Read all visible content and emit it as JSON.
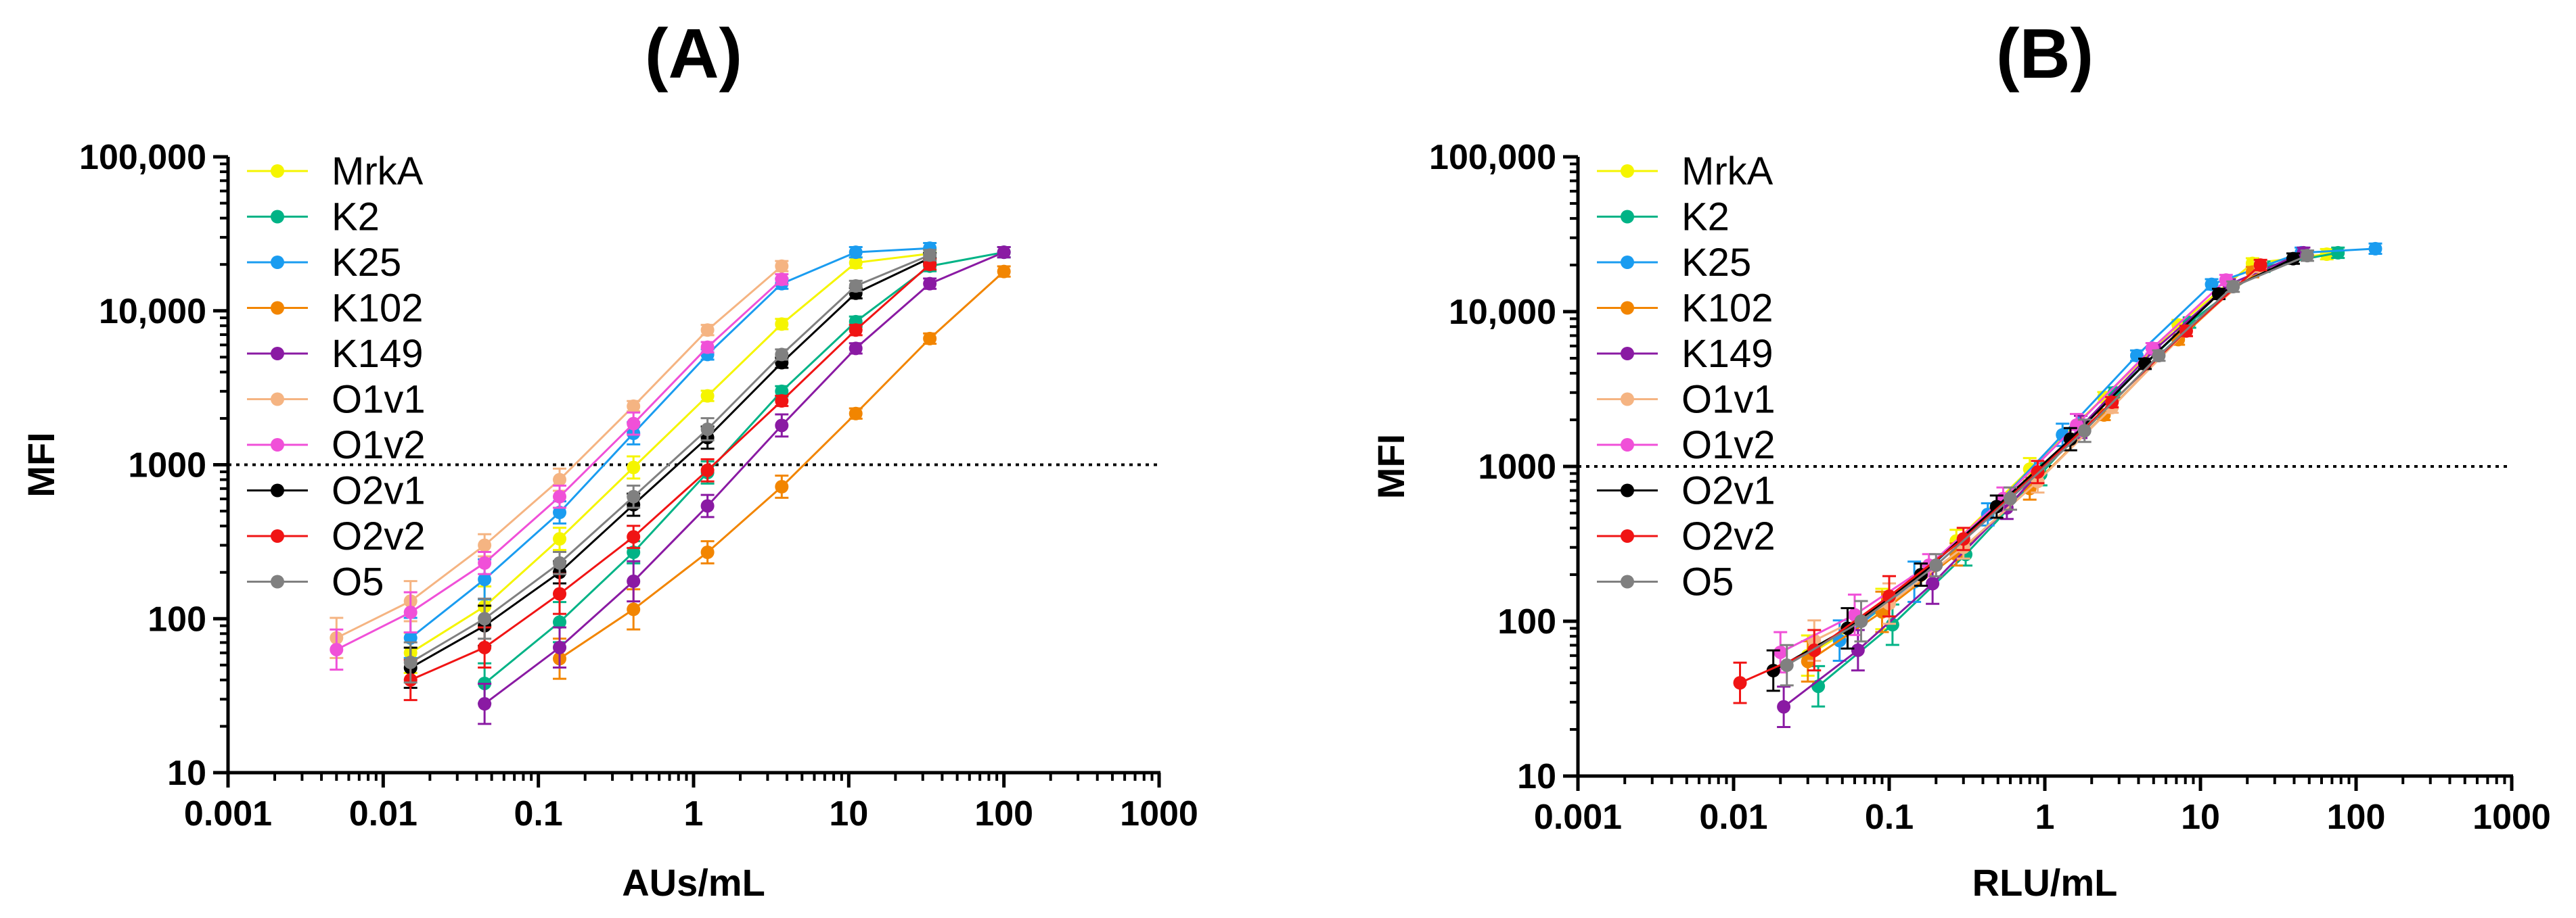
{
  "chart_data": [
    {
      "type": "line",
      "panel_label": "(A)",
      "xlabel": "AUs/mL",
      "ylabel": "MFI",
      "xscale": "log",
      "yscale": "log",
      "xlim": [
        0.001,
        1000
      ],
      "ylim": [
        10,
        100000
      ],
      "x_ticks": [
        "0.001",
        "0.01",
        "0.1",
        "1",
        "10",
        "100",
        "1000"
      ],
      "y_ticks": [
        "10",
        "100",
        "1000",
        "10,000",
        "100,000"
      ],
      "reference_line": {
        "y": 1000,
        "style": "dotted"
      },
      "legend_position": "top-left",
      "series": [
        {
          "name": "MrkA",
          "color": "#f5f500",
          "marker": "circle",
          "x": [
            0.015,
            0.045,
            0.137,
            0.41,
            1.23,
            3.7,
            11.1,
            33.3
          ],
          "y": [
            60,
            120,
            330,
            960,
            2800,
            8200,
            20500,
            23500
          ]
        },
        {
          "name": "K2",
          "color": "#00b386",
          "marker": "circle",
          "x": [
            0.045,
            0.137,
            0.41,
            1.23,
            3.7,
            11.1,
            33.3,
            100
          ],
          "y": [
            38,
            95,
            270,
            890,
            3000,
            8500,
            19500,
            24000
          ]
        },
        {
          "name": "K25",
          "color": "#1a9cf0",
          "marker": "circle",
          "x": [
            0.015,
            0.045,
            0.137,
            0.41,
            1.23,
            3.7,
            11.1,
            33.3
          ],
          "y": [
            75,
            180,
            490,
            1600,
            5200,
            15000,
            24000,
            25500
          ]
        },
        {
          "name": "K102",
          "color": "#f28500",
          "marker": "circle",
          "x": [
            0.137,
            0.41,
            1.23,
            3.7,
            11.1,
            33.3,
            100
          ],
          "y": [
            55,
            115,
            270,
            720,
            2150,
            6600,
            18000
          ]
        },
        {
          "name": "K149",
          "color": "#8a1aa3",
          "marker": "circle",
          "x": [
            0.045,
            0.137,
            0.41,
            1.23,
            3.7,
            11.1,
            33.3,
            100
          ],
          "y": [
            28,
            65,
            175,
            540,
            1800,
            5700,
            15000,
            24000
          ]
        },
        {
          "name": "O1v1",
          "color": "#f5b482",
          "marker": "circle",
          "x": [
            0.005,
            0.015,
            0.045,
            0.137,
            0.41,
            1.23,
            3.7
          ],
          "y": [
            75,
            130,
            300,
            800,
            2400,
            7500,
            19500
          ]
        },
        {
          "name": "O1v2",
          "color": "#f050d8",
          "marker": "circle",
          "x": [
            0.005,
            0.015,
            0.045,
            0.137,
            0.41,
            1.23,
            3.7
          ],
          "y": [
            63,
            110,
            230,
            620,
            1850,
            5800,
            16000
          ]
        },
        {
          "name": "O2v1",
          "color": "#000000",
          "marker": "circle",
          "x": [
            0.015,
            0.045,
            0.137,
            0.41,
            1.23,
            3.7,
            11.1,
            33.3
          ],
          "y": [
            48,
            90,
            200,
            550,
            1500,
            4600,
            13000,
            22000
          ]
        },
        {
          "name": "O2v2",
          "color": "#f01414",
          "marker": "circle",
          "x": [
            0.015,
            0.045,
            0.137,
            0.41,
            1.23,
            3.7,
            11.1,
            33.3
          ],
          "y": [
            40,
            65,
            145,
            340,
            920,
            2600,
            7500,
            20000
          ]
        },
        {
          "name": "O5",
          "color": "#808080",
          "marker": "circle",
          "x": [
            0.015,
            0.045,
            0.137,
            0.41,
            1.23,
            3.7,
            11.1,
            33.3
          ],
          "y": [
            52,
            100,
            230,
            620,
            1700,
            5200,
            14500,
            23000
          ]
        }
      ]
    },
    {
      "type": "line",
      "panel_label": "(B)",
      "xlabel": "RLU/mL",
      "ylabel": "MFI",
      "xscale": "log",
      "yscale": "log",
      "xlim": [
        0.001,
        1000
      ],
      "ylim": [
        10,
        100000
      ],
      "x_ticks": [
        "0.001",
        "0.01",
        "0.1",
        "1",
        "10",
        "100",
        "1000"
      ],
      "y_ticks": [
        "10",
        "100",
        "1000",
        "10,000",
        "100,000"
      ],
      "reference_line": {
        "y": 1000,
        "style": "dotted"
      },
      "legend_position": "top-left",
      "series": [
        {
          "name": "MrkA",
          "color": "#f5f500",
          "marker": "circle",
          "x": [
            0.03,
            0.09,
            0.27,
            0.8,
            2.4,
            7.2,
            21.6,
            64.8
          ],
          "y": [
            60,
            120,
            330,
            960,
            2800,
            8200,
            20500,
            23500
          ]
        },
        {
          "name": "K2",
          "color": "#00b386",
          "marker": "circle",
          "x": [
            0.035,
            0.105,
            0.31,
            0.94,
            2.8,
            8.5,
            25.5,
            76.5
          ],
          "y": [
            38,
            95,
            270,
            890,
            3000,
            8500,
            19500,
            24000
          ]
        },
        {
          "name": "K25",
          "color": "#1a9cf0",
          "marker": "circle",
          "x": [
            0.048,
            0.145,
            0.43,
            1.3,
            3.9,
            11.8,
            44.5,
            133
          ],
          "y": [
            75,
            180,
            490,
            1600,
            5200,
            15000,
            24000,
            25500
          ]
        },
        {
          "name": "K102",
          "color": "#f28500",
          "marker": "circle",
          "x": [
            0.03,
            0.09,
            0.27,
            0.8,
            2.4,
            7.2,
            21.6
          ],
          "y": [
            55,
            115,
            270,
            720,
            2150,
            6600,
            18000
          ]
        },
        {
          "name": "K149",
          "color": "#8a1aa3",
          "marker": "circle",
          "x": [
            0.021,
            0.063,
            0.19,
            0.57,
            1.7,
            5.1,
            15.3,
            46
          ],
          "y": [
            28,
            65,
            175,
            540,
            1800,
            5700,
            15000,
            24000
          ]
        },
        {
          "name": "O1v1",
          "color": "#f5b482",
          "marker": "circle",
          "x": [
            0.033,
            0.1,
            0.3,
            0.9,
            2.7,
            8.1,
            24.3
          ],
          "y": [
            75,
            130,
            300,
            800,
            2400,
            7500,
            19500
          ]
        },
        {
          "name": "O1v2",
          "color": "#f050d8",
          "marker": "circle",
          "x": [
            0.02,
            0.06,
            0.18,
            0.54,
            1.6,
            4.9,
            14.6
          ],
          "y": [
            63,
            110,
            230,
            620,
            1850,
            5800,
            16000
          ]
        },
        {
          "name": "O2v1",
          "color": "#000000",
          "marker": "circle",
          "x": [
            0.018,
            0.054,
            0.16,
            0.49,
            1.46,
            4.4,
            13.1,
            39.4
          ],
          "y": [
            48,
            90,
            200,
            550,
            1500,
            4600,
            13000,
            22000
          ]
        },
        {
          "name": "O2v2",
          "color": "#f01414",
          "marker": "circle",
          "x": [
            0.011,
            0.033,
            0.1,
            0.3,
            0.9,
            2.7,
            8.1,
            24.3
          ],
          "y": [
            40,
            65,
            145,
            340,
            920,
            2600,
            7500,
            20000
          ]
        },
        {
          "name": "O5",
          "color": "#808080",
          "marker": "circle",
          "x": [
            0.022,
            0.066,
            0.2,
            0.6,
            1.8,
            5.4,
            16.2,
            48.6
          ],
          "y": [
            52,
            100,
            230,
            620,
            1700,
            5200,
            14500,
            23000
          ]
        }
      ]
    }
  ]
}
